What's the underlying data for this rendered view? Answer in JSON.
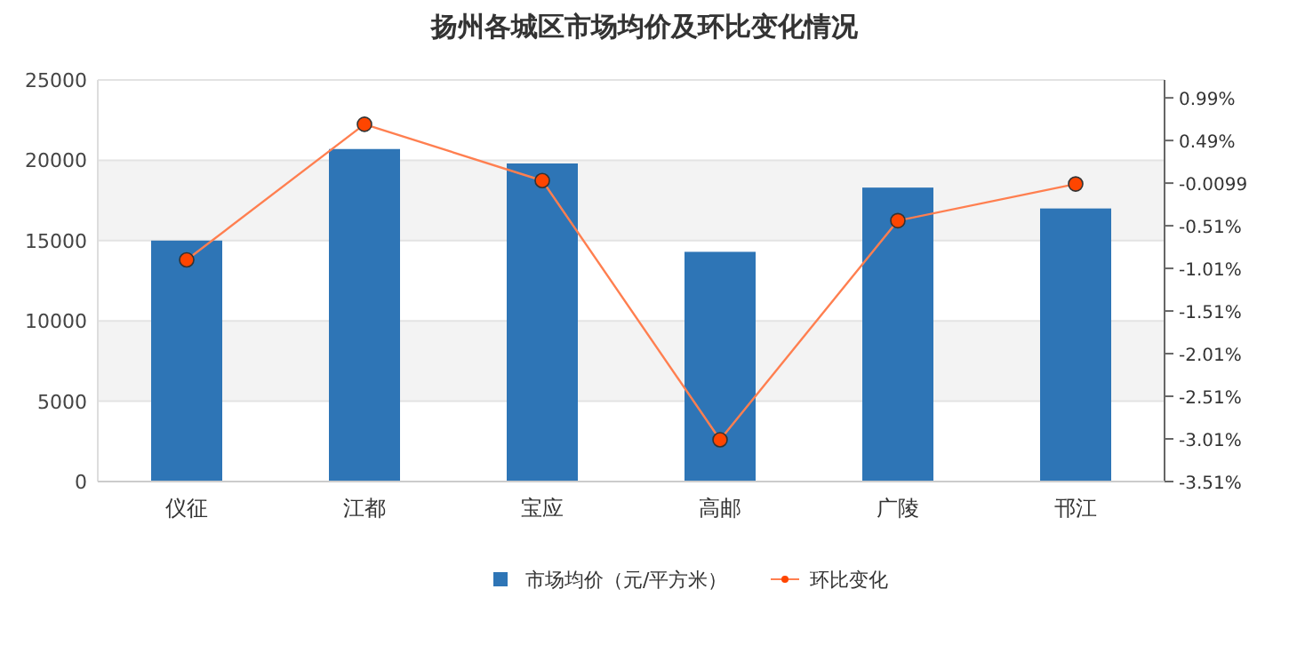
{
  "chart_data": {
    "type": "bar",
    "title": "扬州各城区市场均价及环比变化情况",
    "categories": [
      "仪征",
      "江都",
      "宝应",
      "高邮",
      "广陵",
      "邗江"
    ],
    "series": [
      {
        "name": "市场均价（元/平方米）",
        "color": "#2e75b6",
        "values": [
          15000,
          20700,
          19800,
          14300,
          18300,
          17000
        ]
      },
      {
        "name": "环比变化",
        "type": "line",
        "axis": "y2",
        "color": "#ff7f50",
        "marker": "circle",
        "values": [
          -0.91,
          0.68,
          0.02,
          -3.02,
          -0.45,
          -0.02
        ]
      }
    ],
    "ylim": [
      0,
      25000
    ],
    "yticks": [
      0,
      5000,
      10000,
      15000,
      20000,
      25000
    ],
    "y2lim": [
      -3.51,
      1.2
    ],
    "y2ticks": [
      {
        "value": -3.51,
        "label": "-3.51%"
      },
      {
        "value": -3.01,
        "label": "-3.01%"
      },
      {
        "value": -2.51,
        "label": "-2.51%"
      },
      {
        "value": -2.01,
        "label": "-2.01%"
      },
      {
        "value": -1.51,
        "label": "-1.51%"
      },
      {
        "value": -1.01,
        "label": "-1.01%"
      },
      {
        "value": -0.51,
        "label": "-0.51%"
      },
      {
        "value": -0.0099,
        "label": "-0.0099"
      },
      {
        "value": 0.49,
        "label": "0.49%"
      },
      {
        "value": 0.99,
        "label": "0.99%"
      }
    ],
    "grid": "y",
    "legend": "bottom"
  }
}
